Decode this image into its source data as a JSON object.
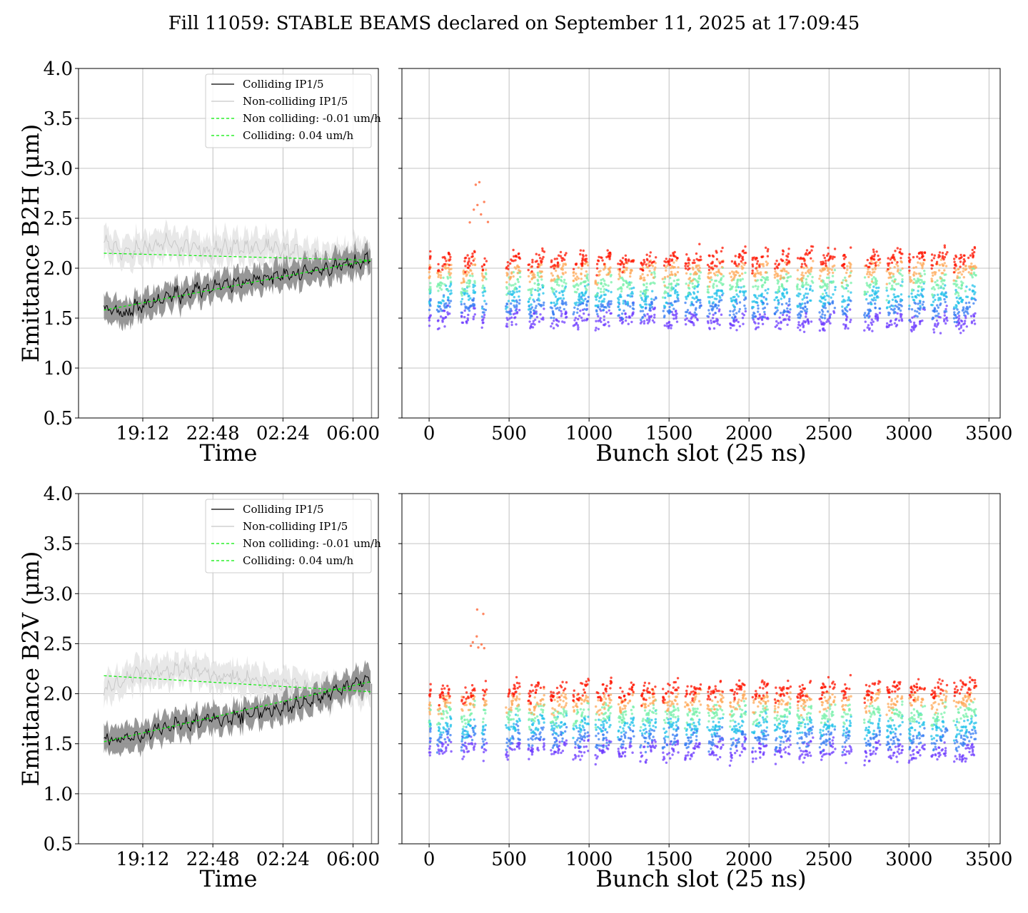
{
  "title": "Fill 11059: STABLE BEAMS declared on September 11, 2025 at 17:09:45",
  "colors": {
    "colliding": "#000000",
    "noncolliding": "#c8c8c8",
    "fit": "#00ee00",
    "grid": "#b0b0b0",
    "band_colliding": "#8c8c8c",
    "band_noncolliding": "#e6e6e6"
  },
  "chart_data": [
    {
      "type": "line",
      "id": "b2h-time",
      "xlabel": "Time",
      "ylabel": "Emittance B2H (μm)",
      "ylim": [
        0.5,
        4.0
      ],
      "yticks": [
        "0.5",
        "1.0",
        "1.5",
        "2.0",
        "2.5",
        "3.0",
        "3.5",
        "4.0"
      ],
      "xticks": [
        "19:12",
        "22:48",
        "02:24",
        "06:00"
      ],
      "xticks_hours": [
        2.0,
        5.6,
        9.2,
        12.8
      ],
      "xlim_hours": [
        -1.3,
        14.1
      ],
      "grid": true,
      "legend_position": "upper-right",
      "legend": [
        {
          "label": "Colliding IP1/5",
          "style": "solid",
          "color": "#000000"
        },
        {
          "label": "Non-colliding IP1/5",
          "style": "solid",
          "color": "#c8c8c8"
        },
        {
          "label": "Non colliding: -0.01 um/h",
          "style": "dashed",
          "color": "#00ee00"
        },
        {
          "label": "Colliding: 0.04 um/h",
          "style": "dashed",
          "color": "#00ee00"
        }
      ],
      "series": [
        {
          "name": "Colliding IP1/5",
          "x_hours": [
            0,
            1,
            2,
            3,
            4,
            5,
            6,
            7,
            8,
            9,
            10,
            11,
            12,
            13,
            13.7
          ],
          "values": [
            1.6,
            1.55,
            1.62,
            1.7,
            1.75,
            1.78,
            1.82,
            1.85,
            1.9,
            1.92,
            1.95,
            1.98,
            2.02,
            2.05,
            2.1
          ]
        },
        {
          "name": "Non-colliding IP1/5",
          "x_hours": [
            0,
            1,
            2,
            3,
            4,
            5,
            6,
            7,
            8,
            9,
            10,
            11,
            12,
            13,
            13.7
          ],
          "values": [
            2.25,
            2.15,
            2.2,
            2.25,
            2.22,
            2.18,
            2.2,
            2.22,
            2.2,
            2.18,
            2.15,
            2.12,
            2.1,
            2.15,
            2.12
          ]
        },
        {
          "name": "Non colliding: -0.01 um/h",
          "x_hours": [
            0,
            13.7
          ],
          "values": [
            2.15,
            2.08
          ]
        },
        {
          "name": "Colliding: 0.04 um/h",
          "x_hours": [
            0,
            13.7
          ],
          "values": [
            1.58,
            2.08
          ]
        }
      ]
    },
    {
      "type": "scatter",
      "id": "b2h-bunch",
      "xlabel": "Bunch slot (25 ns)",
      "ylabel": "",
      "ylim": [
        0.5,
        4.0
      ],
      "xlim": [
        -170,
        3570
      ],
      "xticks": [
        "0",
        "500",
        "1000",
        "1500",
        "2000",
        "2500",
        "3000",
        "3500"
      ],
      "grid": true,
      "color_scale": "rainbow (blue = early, red = late in fill)",
      "trains_start_slot": [
        0,
        50,
        200,
        330,
        480,
        620,
        760,
        900,
        1040,
        1180,
        1320,
        1460,
        1600,
        1740,
        1880,
        2020,
        2160,
        2300,
        2440,
        2580,
        2720,
        2860,
        3000,
        3140,
        3280
      ],
      "trains_end_slot": [
        10,
        140,
        290,
        360,
        570,
        720,
        860,
        1000,
        1140,
        1280,
        1420,
        1560,
        1700,
        1840,
        1980,
        2120,
        2260,
        2400,
        2540,
        2640,
        2820,
        2960,
        3100,
        3240,
        3420
      ],
      "emittance_range_start": [
        1.45,
        2.0
      ],
      "emittance_range_end": [
        1.4,
        2.05
      ],
      "outlier_max": 2.95
    },
    {
      "type": "line",
      "id": "b2v-time",
      "xlabel": "Time",
      "ylabel": "Emittance B2V (μm)",
      "ylim": [
        0.5,
        4.0
      ],
      "yticks": [
        "0.5",
        "1.0",
        "1.5",
        "2.0",
        "2.5",
        "3.0",
        "3.5",
        "4.0"
      ],
      "xticks": [
        "19:12",
        "22:48",
        "02:24",
        "06:00"
      ],
      "xticks_hours": [
        2.0,
        5.6,
        9.2,
        12.8
      ],
      "xlim_hours": [
        -1.3,
        14.1
      ],
      "grid": true,
      "legend_position": "upper-right",
      "legend": [
        {
          "label": "Colliding IP1/5",
          "style": "solid",
          "color": "#000000"
        },
        {
          "label": "Non-colliding IP1/5",
          "style": "solid",
          "color": "#c8c8c8"
        },
        {
          "label": "Non colliding: -0.01 um/h",
          "style": "dashed",
          "color": "#00ee00"
        },
        {
          "label": "Colliding: 0.04 um/h",
          "style": "dashed",
          "color": "#00ee00"
        }
      ],
      "series": [
        {
          "name": "Colliding IP1/5",
          "x_hours": [
            0,
            1,
            2,
            3,
            4,
            5,
            6,
            7,
            8,
            9,
            10,
            11,
            12,
            13,
            13.7
          ],
          "values": [
            1.55,
            1.55,
            1.6,
            1.65,
            1.7,
            1.72,
            1.75,
            1.78,
            1.82,
            1.85,
            1.9,
            1.95,
            2.05,
            2.12,
            2.15
          ]
        },
        {
          "name": "Non-colliding IP1/5",
          "x_hours": [
            0,
            1,
            2,
            3,
            4,
            5,
            6,
            7,
            8,
            9,
            10,
            11,
            12,
            13,
            13.7
          ],
          "values": [
            2.05,
            2.15,
            2.2,
            2.22,
            2.25,
            2.22,
            2.18,
            2.15,
            2.12,
            2.1,
            2.08,
            2.05,
            2.03,
            2.05,
            2.03
          ]
        },
        {
          "name": "Non colliding: -0.01 um/h",
          "x_hours": [
            0,
            13.7
          ],
          "values": [
            2.18,
            2.02
          ]
        },
        {
          "name": "Colliding: 0.04 um/h",
          "x_hours": [
            0,
            13.7
          ],
          "values": [
            1.52,
            2.12
          ]
        }
      ]
    },
    {
      "type": "scatter",
      "id": "b2v-bunch",
      "xlabel": "Bunch slot (25 ns)",
      "ylabel": "",
      "ylim": [
        0.5,
        4.0
      ],
      "xlim": [
        -170,
        3570
      ],
      "xticks": [
        "0",
        "500",
        "1000",
        "1500",
        "2000",
        "2500",
        "3000",
        "3500"
      ],
      "grid": true,
      "color_scale": "rainbow (blue = early, red = late in fill)",
      "trains_start_slot": [
        0,
        50,
        200,
        330,
        480,
        620,
        760,
        900,
        1040,
        1180,
        1320,
        1460,
        1600,
        1740,
        1880,
        2020,
        2160,
        2300,
        2440,
        2580,
        2720,
        2860,
        3000,
        3140,
        3280
      ],
      "trains_end_slot": [
        10,
        140,
        290,
        360,
        570,
        720,
        860,
        1000,
        1140,
        1280,
        1420,
        1560,
        1700,
        1840,
        1980,
        2120,
        2260,
        2400,
        2540,
        2640,
        2820,
        2960,
        3100,
        3240,
        3420
      ],
      "emittance_range_start": [
        1.4,
        1.95
      ],
      "emittance_range_end": [
        1.35,
        2.0
      ],
      "outlier_max": 2.85
    }
  ]
}
